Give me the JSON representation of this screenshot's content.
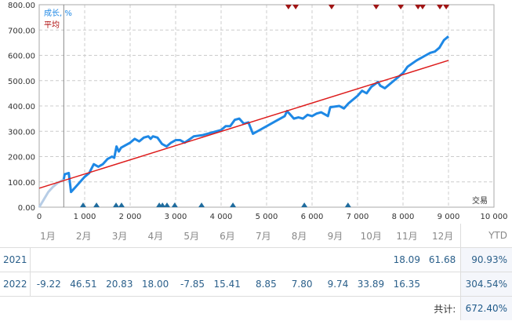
{
  "chart_data": {
    "type": "line",
    "legend": [
      "成长, %",
      "平均"
    ],
    "xlabel": "交易",
    "xlim": [
      0,
      10000
    ],
    "ylim": [
      0,
      800
    ],
    "xticks": [
      "0",
      "1 000",
      "2 000",
      "3 000",
      "4 000",
      "5 000",
      "6 000",
      "7 000",
      "8 000",
      "9 000",
      "10 000"
    ],
    "yticks": [
      "0.00",
      "100.00",
      "200.00",
      "300.00",
      "400.00",
      "500.00",
      "600.00",
      "700.00",
      "800.00"
    ],
    "grid": true,
    "marker_start": 540,
    "series": [
      {
        "name": "成长, %",
        "color": "#1e88e5",
        "x": [
          0,
          100,
          200,
          300,
          400,
          540,
          560,
          650,
          700,
          800,
          900,
          1000,
          1100,
          1200,
          1300,
          1400,
          1500,
          1600,
          1650,
          1700,
          1750,
          1800,
          2000,
          2100,
          2200,
          2300,
          2400,
          2450,
          2500,
          2600,
          2700,
          2800,
          2900,
          3000,
          3100,
          3200,
          3400,
          3600,
          3800,
          4000,
          4100,
          4200,
          4300,
          4400,
          4500,
          4600,
          4700,
          4800,
          5000,
          5200,
          5400,
          5450,
          5550,
          5600,
          5700,
          5800,
          5900,
          6000,
          6100,
          6200,
          6350,
          6400,
          6600,
          6700,
          6800,
          7000,
          7100,
          7200,
          7300,
          7450,
          7500,
          7600,
          7800,
          8000,
          8100,
          8300,
          8500,
          8600,
          8700,
          8800,
          8900,
          9000
        ],
        "y": [
          0,
          30,
          60,
          80,
          95,
          110,
          130,
          135,
          60,
          80,
          100,
          120,
          135,
          170,
          160,
          170,
          190,
          200,
          195,
          240,
          220,
          235,
          255,
          270,
          260,
          275,
          280,
          270,
          280,
          275,
          250,
          240,
          255,
          265,
          265,
          255,
          280,
          285,
          295,
          305,
          320,
          320,
          345,
          350,
          330,
          335,
          290,
          300,
          320,
          340,
          360,
          380,
          360,
          350,
          355,
          350,
          365,
          360,
          370,
          375,
          360,
          395,
          400,
          390,
          410,
          440,
          460,
          450,
          475,
          495,
          480,
          470,
          500,
          530,
          555,
          580,
          600,
          610,
          615,
          630,
          660,
          675
        ]
      },
      {
        "name": "平均",
        "color": "#dd1c1c",
        "x": [
          0,
          9000
        ],
        "y": [
          75,
          580
        ]
      }
    ],
    "deposit_markers": [
      965,
      1260,
      1690,
      1810,
      2640,
      2710,
      2810,
      2980,
      3570,
      4260,
      5830,
      6790
    ],
    "withdrawal_markers": [
      5480,
      5640,
      6430,
      7410,
      7950,
      8330,
      8430,
      8810,
      8950
    ]
  },
  "table": {
    "months": [
      "1月",
      "2月",
      "3月",
      "4月",
      "5月",
      "6月",
      "7月",
      "8月",
      "9月",
      "10月",
      "11月",
      "12月"
    ],
    "ytd_label": "YTD",
    "rows": [
      {
        "year": "2021",
        "values": [
          "",
          "",
          "",
          "",
          "",
          "",
          "",
          "",
          "",
          "",
          "18.09",
          "61.68"
        ],
        "ytd": "90.93%"
      },
      {
        "year": "2022",
        "values": [
          "-9.22",
          "46.51",
          "20.83",
          "18.00",
          "-7.85",
          "15.41",
          "8.85",
          "7.80",
          "9.74",
          "33.89",
          "16.35",
          ""
        ],
        "ytd": "304.54%"
      }
    ],
    "total_label": "共计:",
    "total": "672.40%"
  }
}
